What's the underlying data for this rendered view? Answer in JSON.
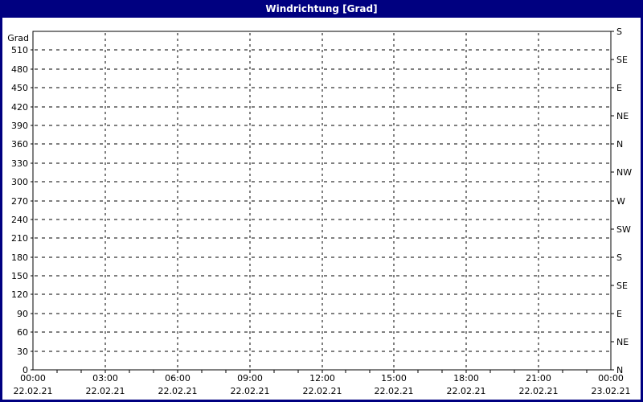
{
  "title": "Windrichtung [Grad]",
  "colors": {
    "frame": "#000080",
    "title_text": "#ffffff",
    "panel_bg": "#ffffff",
    "plot_border": "#000000",
    "grid": "#000000",
    "text": "#000000"
  },
  "chart_data": {
    "type": "line",
    "title": "Windrichtung [Grad]",
    "y_axis_label": "Grad",
    "ylim": [
      0,
      540
    ],
    "y_grid_step": 30,
    "y_left_tick_labels": [
      0,
      30,
      60,
      90,
      120,
      150,
      180,
      210,
      240,
      270,
      300,
      330,
      360,
      390,
      420,
      450,
      480,
      510
    ],
    "y_right_ticks": [
      {
        "deg": 540,
        "label": "S"
      },
      {
        "deg": 495,
        "label": "SE"
      },
      {
        "deg": 450,
        "label": "E"
      },
      {
        "deg": 405,
        "label": "NE"
      },
      {
        "deg": 360,
        "label": "N"
      },
      {
        "deg": 315,
        "label": "NW"
      },
      {
        "deg": 270,
        "label": "W"
      },
      {
        "deg": 225,
        "label": "SW"
      },
      {
        "deg": 180,
        "label": "S"
      },
      {
        "deg": 135,
        "label": "SE"
      },
      {
        "deg": 90,
        "label": "E"
      },
      {
        "deg": 45,
        "label": "NE"
      },
      {
        "deg": 0,
        "label": "N"
      }
    ],
    "xlim_hours": [
      0,
      24
    ],
    "x_minor_tick_hours": 1,
    "x_grid_step_hours": 3,
    "x_ticks": [
      {
        "hour": 0,
        "time": "00:00",
        "date": "22.02.21"
      },
      {
        "hour": 3,
        "time": "03:00",
        "date": "22.02.21"
      },
      {
        "hour": 6,
        "time": "06:00",
        "date": "22.02.21"
      },
      {
        "hour": 9,
        "time": "09:00",
        "date": "22.02.21"
      },
      {
        "hour": 12,
        "time": "12:00",
        "date": "22.02.21"
      },
      {
        "hour": 15,
        "time": "15:00",
        "date": "22.02.21"
      },
      {
        "hour": 18,
        "time": "18:00",
        "date": "22.02.21"
      },
      {
        "hour": 21,
        "time": "21:00",
        "date": "22.02.21"
      },
      {
        "hour": 24,
        "time": "00:00",
        "date": "23.02.21"
      }
    ],
    "grid_style": "dashed",
    "legend": null,
    "series": []
  }
}
